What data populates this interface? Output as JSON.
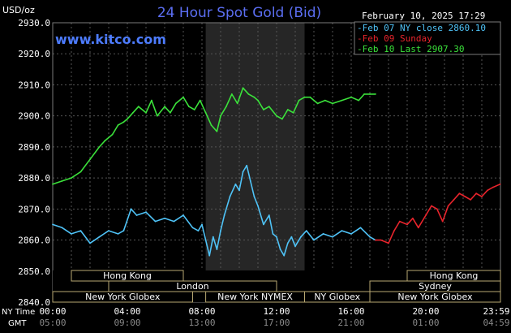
{
  "header": {
    "unit": "USD/oz",
    "title": "24 Hour Spot Gold (Bid)",
    "datetime": "February 10, 2025 17:29",
    "site": "www.kitco.com"
  },
  "legend": [
    {
      "label": "Feb 07 NY close 2860.10",
      "color": "#4fc3f7"
    },
    {
      "label": "Feb 09 Sunday",
      "color": "#e8242c"
    },
    {
      "label": "Feb 10 Last 2907.30",
      "color": "#3be23b"
    }
  ],
  "axis": {
    "y_ticks": [
      "2930.0",
      "2920.0",
      "2910.0",
      "2900.0",
      "2890.0",
      "2880.0",
      "2870.0",
      "2860.0",
      "2850.0",
      "2840.0"
    ],
    "ny_time_label": "NY Time",
    "gmt_label": "GMT",
    "ny_ticks": [
      "00:00",
      "04:00",
      "08:00",
      "12:00",
      "16:00",
      "20:00",
      "23:59"
    ],
    "gmt_ticks": [
      "05:00",
      "09:00",
      "13:00",
      "17:00",
      "21:00",
      "01:00",
      "04:59"
    ]
  },
  "sessions": [
    {
      "label": "Hong Kong",
      "row": 0,
      "start": 1.0,
      "end": 7.0
    },
    {
      "label": "Hong Kong",
      "row": 0,
      "start": 19.0,
      "end": 24.0
    },
    {
      "label": "London",
      "row": 1,
      "start": 3.0,
      "end": 12.0
    },
    {
      "label": "Sydney",
      "row": 1,
      "start": 17.0,
      "end": 24.0
    },
    {
      "label": "New York Globex",
      "row": 2,
      "start": 0.0,
      "end": 7.5
    },
    {
      "label": "New York NYMEX",
      "row": 2,
      "start": 8.2,
      "end": 13.5
    },
    {
      "label": "NY Globex",
      "row": 2,
      "start": 13.5,
      "end": 17.0
    },
    {
      "label": "New York Globex",
      "row": 2,
      "start": 17.0,
      "end": 24.0
    }
  ],
  "chart_data": {
    "type": "line",
    "x_unit": "hours since 00:00 NY time",
    "xlim": [
      0,
      24
    ],
    "ylim": [
      2840,
      2930
    ],
    "ylabel": "USD/oz",
    "grid": true,
    "legend_position": "top-right",
    "highlight_band": [
      8.2,
      13.5
    ],
    "series": [
      {
        "name": "Feb 07 NY close 2860.10",
        "color": "#4fc3f7",
        "x": [
          0,
          0.5,
          1.0,
          1.5,
          2.0,
          2.5,
          3.0,
          3.5,
          3.8,
          4.2,
          4.5,
          5.0,
          5.5,
          6.0,
          6.5,
          7.0,
          7.5,
          7.8,
          8.0,
          8.2,
          8.4,
          8.6,
          8.8,
          9.0,
          9.2,
          9.5,
          9.8,
          10.0,
          10.2,
          10.4,
          10.6,
          10.8,
          11.0,
          11.3,
          11.6,
          11.8,
          12.0,
          12.2,
          12.4,
          12.6,
          12.8,
          13.0,
          13.3,
          13.6,
          14.0,
          14.5,
          15.0,
          15.5,
          16.0,
          16.5,
          17.0,
          17.3
        ],
        "y": [
          2865,
          2864,
          2862,
          2863,
          2859,
          2861,
          2863,
          2862,
          2863,
          2870,
          2868,
          2869,
          2866,
          2867,
          2866,
          2868,
          2864,
          2863,
          2865,
          2860,
          2855,
          2861,
          2857,
          2863,
          2868,
          2874,
          2878,
          2876,
          2882,
          2884,
          2879,
          2874,
          2871,
          2865,
          2868,
          2862,
          2861,
          2857,
          2855,
          2859,
          2861,
          2858,
          2861,
          2863,
          2860,
          2862,
          2861,
          2863,
          2862,
          2864,
          2861,
          2860
        ]
      },
      {
        "name": "Feb 09 Sunday",
        "color": "#e8242c",
        "x": [
          17.3,
          17.6,
          18.0,
          18.3,
          18.6,
          19.0,
          19.3,
          19.6,
          20.0,
          20.3,
          20.6,
          20.9,
          21.2,
          21.5,
          21.8,
          22.1,
          22.4,
          22.7,
          23.0,
          23.3,
          23.6,
          23.98
        ],
        "y": [
          2860,
          2860,
          2859,
          2863,
          2866,
          2865,
          2867,
          2864,
          2868,
          2871,
          2870,
          2866,
          2871,
          2873,
          2875,
          2874,
          2873,
          2875,
          2874,
          2876,
          2877,
          2878
        ]
      },
      {
        "name": "Feb 10 Last 2907.30",
        "color": "#3be23b",
        "x": [
          0,
          0.5,
          1.0,
          1.5,
          2.0,
          2.5,
          2.8,
          3.2,
          3.5,
          3.8,
          4.0,
          4.3,
          4.6,
          5.0,
          5.3,
          5.6,
          6.0,
          6.3,
          6.6,
          7.0,
          7.3,
          7.6,
          7.9,
          8.2,
          8.5,
          8.8,
          9.0,
          9.3,
          9.6,
          9.9,
          10.2,
          10.5,
          10.8,
          11.0,
          11.3,
          11.6,
          12.0,
          12.3,
          12.6,
          12.9,
          13.2,
          13.5,
          13.8,
          14.2,
          14.6,
          15.0,
          15.5,
          16.0,
          16.4,
          16.7,
          17.0,
          17.3
        ],
        "y": [
          2878,
          2879,
          2880,
          2882,
          2886,
          2890,
          2892,
          2894,
          2897,
          2898,
          2899,
          2901,
          2903,
          2901,
          2905,
          2900,
          2903,
          2901,
          2904,
          2906,
          2903,
          2902,
          2905,
          2901,
          2897,
          2895,
          2900,
          2903,
          2907,
          2904,
          2909,
          2907,
          2906,
          2905,
          2902,
          2903,
          2900,
          2899,
          2902,
          2901,
          2905,
          2906,
          2906,
          2904,
          2905,
          2904,
          2905,
          2906,
          2905,
          2907,
          2907,
          2907
        ]
      }
    ]
  }
}
